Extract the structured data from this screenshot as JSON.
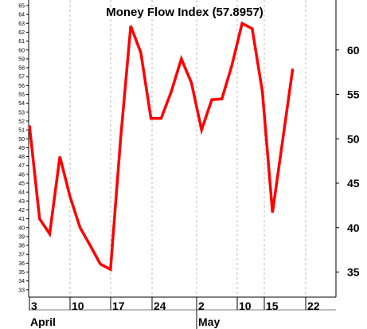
{
  "chart_data": {
    "type": "line",
    "title": "Money Flow Index (57.8957)",
    "x_tick_labels": [
      "3",
      "10",
      "17",
      "24",
      "2",
      "10",
      "15",
      "22"
    ],
    "month_labels": [
      "April",
      "May"
    ],
    "left_ticks": [
      33,
      34,
      35,
      36,
      37,
      38,
      39,
      40,
      41,
      42,
      43,
      44,
      45,
      46,
      47,
      48,
      49,
      50,
      51,
      52,
      53,
      54,
      55,
      56,
      57,
      58,
      59,
      60,
      61,
      62,
      63,
      64,
      65
    ],
    "right_ticks": [
      35,
      40,
      45,
      50,
      55,
      60
    ],
    "ylim": [
      33,
      65.3
    ],
    "grid": true,
    "series": [
      {
        "color": "#ff0000",
        "x": [
          "2003-04-03",
          "2003-04-04",
          "2003-04-07",
          "2003-04-08",
          "2003-04-09",
          "2003-04-10",
          "2003-04-11",
          "2003-04-14",
          "2003-04-15",
          "2003-04-16",
          "2003-04-17",
          "2003-04-18",
          "2003-04-21",
          "2003-04-22",
          "2003-04-23",
          "2003-04-24",
          "2003-04-25",
          "2003-04-28",
          "2003-04-29",
          "2003-04-30",
          "2003-05-01",
          "2003-05-02",
          "2003-05-05",
          "2003-05-06",
          "2003-05-07",
          "2003-05-08",
          "2003-05-09"
        ],
        "values": [
          51.5,
          41.0,
          39.3,
          48.0,
          43.5,
          40.0,
          38.0,
          35.9,
          35.3,
          50.0,
          62.7,
          59.7,
          52.3,
          52.3,
          55.3,
          59.0,
          56.3,
          51.0,
          54.4,
          54.5,
          58.3,
          63.0,
          62.4,
          55.3,
          41.7,
          null,
          57.9
        ]
      }
    ]
  }
}
